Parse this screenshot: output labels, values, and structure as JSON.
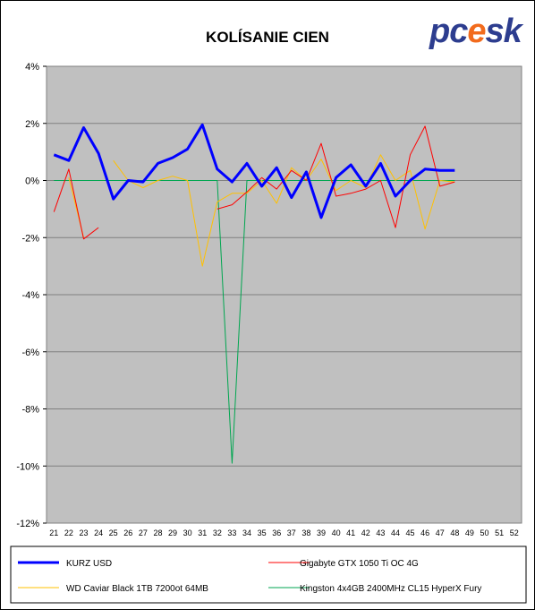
{
  "logo_text": "pcesk",
  "chart_data": {
    "type": "line",
    "title": "KOLÍSANIE CIEN",
    "xlabel": "",
    "ylabel": "",
    "ylim": [
      -12,
      4
    ],
    "yticks": [
      4,
      2,
      0,
      -2,
      -4,
      -6,
      -8,
      -10,
      -12
    ],
    "ytick_labels": [
      "4%",
      "2%",
      "0%",
      "-2%",
      "-4%",
      "-6%",
      "-8%",
      "-10%",
      "-12%"
    ],
    "x": [
      21,
      22,
      23,
      24,
      25,
      26,
      27,
      28,
      29,
      30,
      31,
      32,
      33,
      34,
      35,
      36,
      37,
      38,
      39,
      40,
      41,
      42,
      43,
      44,
      45,
      46,
      47,
      48,
      49,
      50,
      51,
      52
    ],
    "grid": true,
    "legend": "bottom",
    "series": [
      {
        "name": "KURZ USD",
        "color": "#0000ff",
        "width": 3,
        "values": [
          0.9,
          0.7,
          1.85,
          0.95,
          -0.65,
          0.0,
          -0.05,
          0.6,
          0.8,
          1.1,
          1.95,
          0.4,
          -0.05,
          0.6,
          -0.2,
          0.45,
          -0.6,
          0.3,
          -1.3,
          0.1,
          0.55,
          -0.2,
          0.6,
          -0.55,
          0.0,
          0.4,
          0.35,
          0.35,
          null,
          null,
          null,
          null
        ]
      },
      {
        "name": "Gigabyte GTX 1050 Ti OC 4G",
        "color": "#ff0000",
        "width": 1,
        "values": [
          -1.1,
          0.4,
          -2.05,
          -1.65,
          null,
          null,
          null,
          null,
          null,
          null,
          null,
          -1.0,
          -0.85,
          -0.4,
          0.1,
          -0.3,
          0.35,
          0.0,
          1.3,
          -0.55,
          -0.45,
          -0.3,
          0.0,
          -1.65,
          0.9,
          1.9,
          -0.2,
          -0.05,
          null,
          null,
          null,
          null
        ]
      },
      {
        "name": "WD Caviar Black 1TB 7200ot 64MB",
        "color": "#ffc000",
        "width": 1,
        "values": [
          null,
          0.1,
          -2.0,
          null,
          0.7,
          0.0,
          -0.25,
          0.0,
          0.15,
          0.0,
          -3.0,
          -0.75,
          -0.45,
          -0.45,
          0.0,
          -0.8,
          0.45,
          0.0,
          0.75,
          -0.35,
          0.0,
          -0.25,
          0.9,
          0.0,
          0.35,
          -1.7,
          0.0,
          -0.05,
          null,
          null,
          null,
          null
        ]
      },
      {
        "name": "Kingston 4x4GB 2400MHz CL15 HyperX Fury",
        "color": "#00a650",
        "width": 1,
        "values": [
          0.0,
          0.0,
          0.0,
          0.0,
          0.0,
          0.0,
          0.0,
          0.0,
          0.0,
          0.0,
          0.0,
          0.0,
          -9.9,
          0.0,
          0.0,
          0.0,
          0.0,
          0.0,
          0.0,
          0.0,
          0.0,
          0.0,
          0.0,
          0.0,
          0.0,
          0.0,
          0.0,
          0.0,
          null,
          null,
          null,
          null
        ]
      }
    ]
  }
}
